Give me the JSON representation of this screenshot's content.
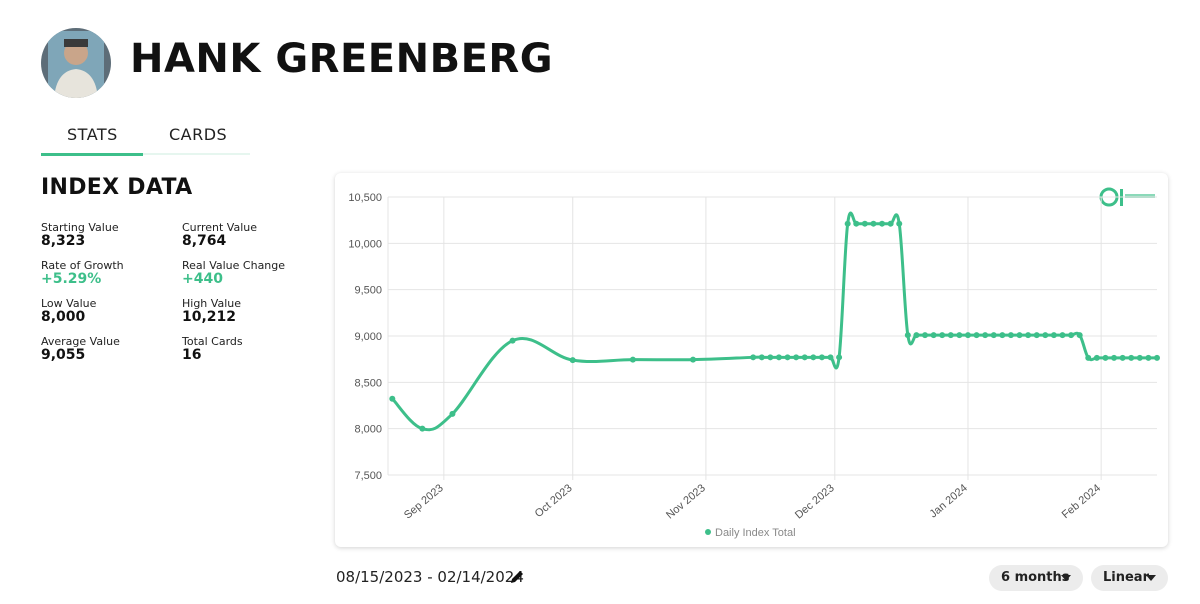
{
  "header": {
    "name": "HANK GREENBERG"
  },
  "tabs": [
    "STATS",
    "CARDS"
  ],
  "section_title": "INDEX DATA",
  "stats": [
    {
      "label": "Starting Value",
      "value": "8,323"
    },
    {
      "label": "Current Value",
      "value": "8,764"
    },
    {
      "label": "Rate of Growth",
      "value": "+5.29%"
    },
    {
      "label": "Real Value Change",
      "value": "+440"
    },
    {
      "label": "Low Value",
      "value": "8,000"
    },
    {
      "label": "High Value",
      "value": "10,212"
    },
    {
      "label": "Average Value",
      "value": "9,055"
    },
    {
      "label": "Total Cards",
      "value": "16"
    }
  ],
  "chart_data": {
    "type": "line",
    "x": [
      "2023-08-20",
      "2023-08-27",
      "2023-09-03",
      "2023-09-17",
      "2023-10-01",
      "2023-10-15",
      "2023-10-29",
      "2023-11-12",
      "2023-11-14",
      "2023-11-16",
      "2023-11-18",
      "2023-11-20",
      "2023-11-22",
      "2023-11-24",
      "2023-11-26",
      "2023-11-28",
      "2023-11-30",
      "2023-12-02",
      "2023-12-04",
      "2023-12-06",
      "2023-12-08",
      "2023-12-10",
      "2023-12-12",
      "2023-12-14",
      "2023-12-16",
      "2023-12-18",
      "2023-12-20",
      "2023-12-22",
      "2023-12-24",
      "2023-12-26",
      "2023-12-28",
      "2023-12-30",
      "2024-01-01",
      "2024-01-03",
      "2024-01-05",
      "2024-01-07",
      "2024-01-09",
      "2024-01-11",
      "2024-01-13",
      "2024-01-15",
      "2024-01-17",
      "2024-01-19",
      "2024-01-21",
      "2024-01-23",
      "2024-01-25",
      "2024-01-27",
      "2024-01-29",
      "2024-01-31",
      "2024-02-02",
      "2024-02-04",
      "2024-02-06",
      "2024-02-08",
      "2024-02-10",
      "2024-02-12",
      "2024-02-14"
    ],
    "series": [
      {
        "name": "Daily Index Total",
        "color": "#3dbf8a",
        "values": [
          8323,
          8000,
          8160,
          8950,
          8740,
          8745,
          8745,
          8770,
          8770,
          8770,
          8770,
          8770,
          8770,
          8770,
          8770,
          8770,
          8770,
          8770,
          10212,
          10212,
          10212,
          10212,
          10212,
          10212,
          10212,
          9010,
          9010,
          9010,
          9010,
          9010,
          9010,
          9010,
          9010,
          9010,
          9010,
          9010,
          9010,
          9010,
          9010,
          9010,
          9010,
          9010,
          9010,
          9010,
          9010,
          9010,
          8764,
          8764,
          8764,
          8764,
          8764,
          8764,
          8764,
          8764,
          8764
        ]
      }
    ],
    "xlim": [
      "2023-08-19",
      "2024-02-14"
    ],
    "xticks": [
      {
        "value": "2023-09-01",
        "label": "Sep 2023"
      },
      {
        "value": "2023-10-01",
        "label": "Oct 2023"
      },
      {
        "value": "2023-11-01",
        "label": "Nov 2023"
      },
      {
        "value": "2023-12-01",
        "label": "Dec 2023"
      },
      {
        "value": "2024-01-01",
        "label": "Jan 2024"
      },
      {
        "value": "2024-02-01",
        "label": "Feb 2024"
      }
    ],
    "ylim": [
      7500,
      10500
    ],
    "yticks": [
      {
        "value": 7500,
        "label": "7,500"
      },
      {
        "value": 8000,
        "label": "8,000"
      },
      {
        "value": 8500,
        "label": "8,500"
      },
      {
        "value": 9000,
        "label": "9,000"
      },
      {
        "value": 9500,
        "label": "9,500"
      },
      {
        "value": 10000,
        "label": "10,000"
      },
      {
        "value": 10500,
        "label": "10,500"
      }
    ],
    "grid": true
  },
  "footer": {
    "date_range": "08/15/2023 - 02/14/2024",
    "period": "6 months",
    "scale": "Linear"
  }
}
